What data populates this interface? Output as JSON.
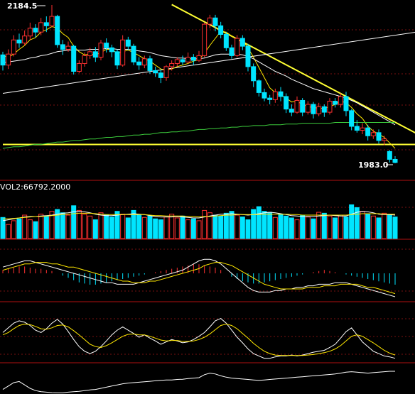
{
  "colors": {
    "background": "#000000",
    "up": "#ff3030",
    "down": "#00e5ff",
    "ma_yellow": "#ffe800",
    "ma_white": "#ffffff",
    "ma_green": "#3ccc3c",
    "trendline": "#ffff33",
    "panel_border": "#b01010",
    "grid_dotted": "#7a1010"
  },
  "chart_data": [
    {
      "type": "candlestick",
      "annotations": {
        "high_label": "2184.5",
        "low_label": "1983.0"
      },
      "candles": [
        [
          2121,
          2108,
          2125,
          2101
        ],
        [
          2108,
          2122,
          2128,
          2103
        ],
        [
          2122,
          2140,
          2146,
          2119
        ],
        [
          2140,
          2136,
          2148,
          2130
        ],
        [
          2136,
          2145,
          2152,
          2133
        ],
        [
          2145,
          2155,
          2162,
          2140
        ],
        [
          2155,
          2150,
          2160,
          2143
        ],
        [
          2150,
          2162,
          2168,
          2146
        ],
        [
          2162,
          2158,
          2170,
          2150
        ],
        [
          2158,
          2170,
          2184.5,
          2156
        ],
        [
          2170,
          2134,
          2172,
          2130
        ],
        [
          2134,
          2128,
          2140,
          2121
        ],
        [
          2128,
          2132,
          2138,
          2125
        ],
        [
          2132,
          2100,
          2134,
          2096
        ],
        [
          2100,
          2110,
          2114,
          2098
        ],
        [
          2110,
          2120,
          2124,
          2106
        ],
        [
          2120,
          2125,
          2130,
          2116
        ],
        [
          2125,
          2118,
          2131,
          2112
        ],
        [
          2118,
          2136,
          2140,
          2114
        ],
        [
          2136,
          2130,
          2142,
          2124
        ],
        [
          2130,
          2125,
          2134,
          2118
        ],
        [
          2125,
          2108,
          2128,
          2103
        ],
        [
          2108,
          2140,
          2146,
          2106
        ],
        [
          2140,
          2132,
          2144,
          2127
        ],
        [
          2132,
          2112,
          2135,
          2108
        ],
        [
          2112,
          2108,
          2118,
          2102
        ],
        [
          2108,
          2116,
          2120,
          2104
        ],
        [
          2116,
          2101,
          2120,
          2097
        ],
        [
          2101,
          2098,
          2106,
          2093
        ],
        [
          2098,
          2092,
          2102,
          2085
        ],
        [
          2092,
          2106,
          2108,
          2088
        ],
        [
          2106,
          2110,
          2114,
          2101
        ],
        [
          2110,
          2115,
          2118,
          2106
        ],
        [
          2115,
          2112,
          2120,
          2108
        ],
        [
          2112,
          2118,
          2124,
          2110
        ],
        [
          2118,
          2114,
          2122,
          2108
        ],
        [
          2114,
          2120,
          2126,
          2112
        ],
        [
          2120,
          2160,
          2162,
          2118
        ],
        [
          2160,
          2168,
          2172,
          2155
        ],
        [
          2168,
          2158,
          2172,
          2151
        ],
        [
          2158,
          2147,
          2163,
          2142
        ],
        [
          2147,
          2130,
          2150,
          2126
        ],
        [
          2130,
          2120,
          2134,
          2116
        ],
        [
          2120,
          2142,
          2146,
          2118
        ],
        [
          2142,
          2132,
          2146,
          2127
        ],
        [
          2132,
          2106,
          2135,
          2100
        ],
        [
          2106,
          2088,
          2110,
          2080
        ],
        [
          2088,
          2073,
          2090,
          2068
        ],
        [
          2073,
          2066,
          2078,
          2062
        ],
        [
          2066,
          2064,
          2070,
          2058
        ],
        [
          2064,
          2074,
          2078,
          2060
        ],
        [
          2074,
          2068,
          2080,
          2062
        ],
        [
          2068,
          2052,
          2072,
          2047
        ],
        [
          2052,
          2048,
          2058,
          2043
        ],
        [
          2048,
          2063,
          2068,
          2046
        ],
        [
          2063,
          2048,
          2066,
          2043
        ],
        [
          2048,
          2058,
          2062,
          2045
        ],
        [
          2058,
          2046,
          2061,
          2040
        ],
        [
          2046,
          2055,
          2060,
          2043
        ],
        [
          2055,
          2048,
          2058,
          2042
        ],
        [
          2048,
          2062,
          2066,
          2045
        ],
        [
          2062,
          2058,
          2066,
          2054
        ],
        [
          2058,
          2068,
          2072,
          2054
        ],
        [
          2068,
          2050,
          2074,
          2043
        ],
        [
          2050,
          2030,
          2052,
          2025
        ],
        [
          2030,
          2025,
          2038,
          2022
        ],
        [
          2025,
          2028,
          2034,
          2020
        ],
        [
          2028,
          2018,
          2032,
          2012
        ],
        [
          2018,
          2022,
          2026,
          2014
        ],
        [
          2022,
          2012,
          2026,
          2008
        ],
        [
          2012,
          2014,
          2018,
          2006
        ],
        [
          1998,
          1988,
          2000,
          1984
        ],
        [
          1988,
          1984,
          1992,
          1983
        ]
      ],
      "moving_averages": [
        {
          "color": "#ffe800",
          "values": [
            2120,
            2118,
            2122,
            2128,
            2133,
            2140,
            2143,
            2150,
            2153,
            2157,
            2155,
            2148,
            2143,
            2132,
            2125,
            2121,
            2122,
            2121,
            2124,
            2128,
            2128,
            2123,
            2125,
            2127,
            2124,
            2120,
            2116,
            2113,
            2108,
            2103,
            2102,
            2103,
            2106,
            2108,
            2110,
            2113,
            2115,
            2123,
            2133,
            2142,
            2151,
            2150,
            2145,
            2140,
            2139,
            2130,
            2118,
            2105,
            2092,
            2079,
            2073,
            2069,
            2066,
            2061,
            2062,
            2058,
            2055,
            2054,
            2053,
            2053,
            2055,
            2058,
            2062,
            2060,
            2054,
            2046,
            2040,
            2030,
            2024,
            2020,
            2016,
            2009,
            2002
          ]
        },
        {
          "color": "#ffffff",
          "values": [
            2111,
            2112,
            2113,
            2114,
            2115,
            2117,
            2118,
            2120,
            2121,
            2123,
            2125,
            2126,
            2127,
            2127,
            2127,
            2127,
            2128,
            2128,
            2128,
            2129,
            2129,
            2128,
            2128,
            2128,
            2127,
            2126,
            2125,
            2124,
            2122,
            2120,
            2119,
            2118,
            2117,
            2117,
            2116,
            2116,
            2116,
            2117,
            2119,
            2121,
            2122,
            2122,
            2122,
            2122,
            2121,
            2119,
            2116,
            2112,
            2108,
            2104,
            2100,
            2097,
            2094,
            2090,
            2087,
            2084,
            2081,
            2078,
            2076,
            2074,
            2072,
            2070,
            2068,
            2066,
            2063,
            2060,
            2056,
            2052,
            2048,
            2044,
            2040,
            2036,
            2032
          ]
        },
        {
          "color": "#3ccc3c",
          "values": [
            2002,
            2003,
            2004,
            2004,
            2005,
            2006,
            2007,
            2007,
            2008,
            2009,
            2010,
            2010,
            2011,
            2012,
            2012,
            2013,
            2014,
            2014,
            2015,
            2016,
            2016,
            2017,
            2017,
            2018,
            2019,
            2019,
            2020,
            2020,
            2021,
            2022,
            2022,
            2023,
            2023,
            2024,
            2024,
            2025,
            2026,
            2026,
            2027,
            2027,
            2028,
            2028,
            2029,
            2029,
            2030,
            2030,
            2031,
            2031,
            2031,
            2032,
            2032,
            2032,
            2033,
            2033,
            2033,
            2034,
            2034,
            2034,
            2034,
            2034,
            2034,
            2035,
            2035,
            2035,
            2035,
            2035,
            2035,
            2035,
            2035,
            2035,
            2035,
            2035,
            2035
          ]
        }
      ],
      "trendlines": [
        {
          "color": "#ffff33",
          "width": 2,
          "points": [
            [
              31,
              2185
            ],
            [
              72,
              2021
            ]
          ]
        },
        {
          "color": "#ffff33",
          "width": 2,
          "points": [
            [
              0,
              2007
            ],
            [
              72,
              2007
            ]
          ]
        },
        {
          "color": "#ffffff",
          "width": 1,
          "points": [
            [
              0,
              2072
            ],
            [
              72,
              2150
            ]
          ]
        }
      ]
    },
    {
      "type": "bar",
      "label": "VOL2:66792.2000",
      "values": [
        45,
        30,
        38,
        42,
        50,
        40,
        36,
        52,
        48,
        58,
        62,
        55,
        50,
        70,
        60,
        52,
        48,
        40,
        55,
        50,
        46,
        58,
        52,
        44,
        60,
        50,
        45,
        48,
        42,
        40,
        46,
        52,
        44,
        48,
        40,
        42,
        38,
        60,
        55,
        50,
        48,
        54,
        58,
        50,
        46,
        40,
        62,
        68,
        58,
        56,
        45,
        52,
        48,
        44,
        40,
        50,
        46,
        42,
        56,
        54,
        48,
        44,
        50,
        46,
        72,
        66,
        58,
        52,
        48,
        44,
        54,
        50,
        46
      ],
      "ma_white": [
        38,
        40,
        42,
        44,
        46,
        47,
        47,
        48,
        49,
        50,
        52,
        54,
        55,
        57,
        58,
        57,
        55,
        52,
        50,
        49,
        49,
        50,
        51,
        52,
        53,
        52,
        51,
        49,
        47,
        46,
        46,
        46,
        47,
        46,
        45,
        44,
        44,
        46,
        48,
        50,
        52,
        52,
        53,
        52,
        51,
        50,
        51,
        53,
        55,
        56,
        55,
        53,
        51,
        49,
        48,
        47,
        47,
        47,
        48,
        49,
        50,
        49,
        48,
        48,
        52,
        56,
        58,
        57,
        55,
        52,
        51,
        51,
        50
      ],
      "ma_yellow": [
        42,
        42,
        43,
        44,
        45,
        46,
        47,
        47,
        48,
        49,
        50,
        51,
        52,
        53,
        54,
        54,
        54,
        53,
        52,
        51,
        51,
        51,
        51,
        51,
        51,
        51,
        51,
        50,
        49,
        49,
        48,
        48,
        48,
        48,
        47,
        47,
        46,
        47,
        47,
        48,
        49,
        50,
        50,
        51,
        51,
        51,
        51,
        51,
        52,
        52,
        52,
        52,
        52,
        51,
        51,
        50,
        50,
        50,
        50,
        50,
        50,
        50,
        50,
        50,
        51,
        52,
        53,
        53,
        53,
        53,
        52,
        52,
        52
      ]
    },
    {
      "type": "bar",
      "histogram": [
        3,
        4,
        5,
        6,
        6,
        5,
        4,
        4,
        3,
        2,
        0,
        -2,
        -4,
        -6,
        -8,
        -9,
        -10,
        -10,
        -9,
        -8,
        -7,
        -6,
        -5,
        -4,
        -3,
        -2,
        -1,
        0,
        1,
        2,
        3,
        4,
        5,
        6,
        7,
        8,
        8,
        7,
        6,
        5,
        3,
        0,
        -3,
        -5,
        -7,
        -8,
        -9,
        -9,
        -8,
        -7,
        -6,
        -5,
        -4,
        -3,
        -2,
        -1,
        0,
        1,
        2,
        3,
        2,
        1,
        0,
        -1,
        -2,
        -3,
        -4,
        -5,
        -6,
        -7,
        -8,
        -9,
        -10
      ],
      "dif": [
        4,
        5,
        6,
        7,
        8,
        8,
        7,
        6,
        5,
        4,
        3,
        2,
        1,
        0,
        -1,
        -2,
        -3,
        -4,
        -5,
        -6,
        -6,
        -7,
        -7,
        -7,
        -7,
        -6,
        -5,
        -4,
        -3,
        -2,
        -1,
        0,
        1,
        2,
        4,
        6,
        8,
        9,
        9,
        8,
        6,
        3,
        0,
        -3,
        -6,
        -9,
        -11,
        -12,
        -12,
        -12,
        -11,
        -11,
        -10,
        -10,
        -9,
        -9,
        -8,
        -8,
        -7,
        -7,
        -7,
        -6,
        -6,
        -6,
        -7,
        -8,
        -9,
        -10,
        -11,
        -12,
        -13,
        -14,
        -15
      ],
      "dea": [
        2,
        3,
        4,
        5,
        6,
        6,
        7,
        7,
        7,
        6,
        6,
        5,
        4,
        4,
        3,
        2,
        1,
        0,
        -1,
        -2,
        -3,
        -4,
        -5,
        -5,
        -6,
        -6,
        -6,
        -5,
        -5,
        -4,
        -3,
        -2,
        -1,
        0,
        1,
        2,
        3,
        5,
        6,
        7,
        7,
        6,
        5,
        3,
        1,
        -1,
        -3,
        -5,
        -7,
        -8,
        -9,
        -10,
        -10,
        -10,
        -10,
        -10,
        -9,
        -9,
        -9,
        -8,
        -8,
        -8,
        -7,
        -7,
        -7,
        -7,
        -8,
        -9,
        -9,
        -10,
        -11,
        -12,
        -13
      ]
    },
    {
      "type": "line",
      "k": [
        60,
        70,
        80,
        85,
        82,
        75,
        65,
        60,
        68,
        80,
        88,
        78,
        62,
        45,
        30,
        20,
        15,
        20,
        30,
        42,
        55,
        65,
        72,
        65,
        58,
        50,
        55,
        48,
        42,
        35,
        40,
        45,
        42,
        38,
        40,
        45,
        52,
        60,
        72,
        85,
        90,
        80,
        65,
        50,
        38,
        25,
        15,
        10,
        5,
        5,
        8,
        10,
        10,
        12,
        10,
        12,
        15,
        18,
        20,
        22,
        28,
        35,
        48,
        62,
        70,
        55,
        40,
        30,
        20,
        15,
        10,
        8,
        5
      ],
      "d": [
        55,
        60,
        68,
        75,
        78,
        77,
        73,
        68,
        67,
        70,
        75,
        76,
        72,
        64,
        55,
        45,
        35,
        30,
        28,
        32,
        38,
        45,
        52,
        56,
        57,
        55,
        55,
        52,
        48,
        44,
        42,
        43,
        43,
        41,
        41,
        42,
        45,
        50,
        57,
        66,
        75,
        78,
        75,
        68,
        58,
        48,
        37,
        28,
        20,
        15,
        12,
        11,
        11,
        11,
        11,
        11,
        12,
        13,
        15,
        17,
        20,
        25,
        32,
        42,
        52,
        55,
        52,
        45,
        38,
        30,
        22,
        16,
        12
      ]
    },
    {
      "type": "line",
      "values": [
        20,
        35,
        50,
        55,
        40,
        25,
        15,
        10,
        8,
        6,
        5,
        5,
        8,
        10,
        12,
        15,
        18,
        20,
        25,
        30,
        35,
        40,
        45,
        48,
        50,
        52,
        54,
        56,
        58,
        60,
        62,
        62,
        64,
        65,
        68,
        70,
        72,
        85,
        92,
        88,
        80,
        74,
        70,
        68,
        66,
        64,
        62,
        60,
        62,
        64,
        66,
        68,
        70,
        72,
        74,
        76,
        78,
        80,
        82,
        84,
        86,
        88,
        92,
        96,
        98,
        96,
        94,
        92,
        94,
        96,
        98,
        100,
        100
      ]
    }
  ]
}
